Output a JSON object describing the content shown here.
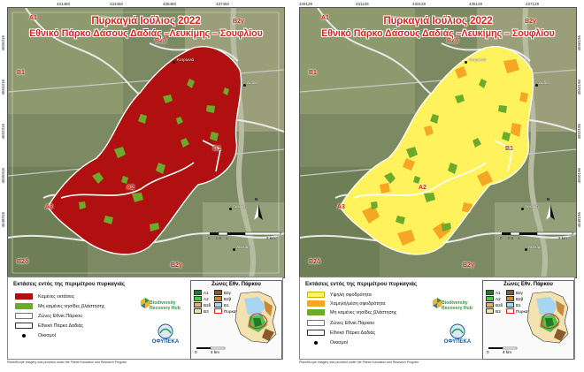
{
  "title_line1": "Πυρκαγιά Ιούλιος 2022",
  "title_line2": "Εθνικό Πάρκο Δάσους Δαδιάς –Λευκίμης – Σουφλίου",
  "x_ticks_top": [
    "431450",
    "433450",
    "435450",
    "437450"
  ],
  "x_ticks_bottom": [
    "431450",
    "433450",
    "435450",
    "437450"
  ],
  "x_ticks_top_right": [
    "429129",
    "431129",
    "433129",
    "435129",
    "437129"
  ],
  "x_ticks_bottom_right": [
    "429129",
    "431129",
    "433129",
    "435129",
    "437129"
  ],
  "y_ticks": [
    "4556316",
    "4554316",
    "4552316",
    "4550316",
    "4548316",
    "4546316",
    "4544316",
    "4542316"
  ],
  "y_ticks_right": [
    "4556196",
    "4554196",
    "4552196",
    "4550196",
    "4548196",
    "4546196",
    "4544196"
  ],
  "zone_labels": {
    "a1": "A1",
    "a2": "A2",
    "a3": "A3",
    "b1": "B1",
    "b1b": "B1",
    "b2g": "B2γ",
    "b2d": "B2δ",
    "b2b": "B2β",
    "b2y": "B2γ"
  },
  "villages": {
    "dadia": "Δαδιά",
    "kotronia": "Κοτρωνιά",
    "provatonas": "Προβατώνας",
    "likofos": "Λυκόφη",
    "lefkimi": "Λευκίμη"
  },
  "scale": {
    "zero": "0",
    "half": "0,5",
    "one": "1",
    "two": "2 km"
  },
  "north_label": "N",
  "legend_title": "Εκτάσεις εντός της περιμέτρου πυρκαγιάς",
  "legend_left": [
    {
      "label": "Καμένες εκτάσεις",
      "color": "#b01010",
      "border": "#b01010"
    },
    {
      "label": "Μη καμένες νησίδες βλάστησης",
      "color": "#6aab2e",
      "border": "#6aab2e"
    },
    {
      "label": "Ζώνες Εθνικ.Πάρκου",
      "color": "#ffffff",
      "border": "#777777"
    },
    {
      "label": "Εθνικό Πάρκο Δαδιάς",
      "color": "#ffffff",
      "border": "#333333"
    },
    {
      "label": "Οικισμοί",
      "color": "dot",
      "border": "#000000"
    }
  ],
  "legend_right": [
    {
      "label": "Υψηλή σφοδρότητα",
      "color": "#fff25c",
      "border": "#c9b800"
    },
    {
      "label": "Χαμηλή/μέση σφοδρότητα",
      "color": "#f5a623",
      "border": "#f5a623"
    },
    {
      "label": "Μη καμένες νησίδες βλάστησης",
      "color": "#6aab2e",
      "border": "#6aab2e"
    },
    {
      "label": "Ζώνες Εθνικ.Πάρκου",
      "color": "#ffffff",
      "border": "#777777"
    },
    {
      "label": "Εθνικό Πάρκο Δαδιάς",
      "color": "#ffffff",
      "border": "#333333"
    },
    {
      "label": "Οικισμοί",
      "color": "dot",
      "border": "#000000"
    }
  ],
  "minimap_title": "Ζώνες Εθν. Πάρκου",
  "minimap_rows": [
    {
      "label": "A1",
      "color": "#1f7a2c"
    },
    {
      "label": "B2γ",
      "color": "#8b5a2b"
    },
    {
      "label": "A2",
      "color": "#58c04a"
    },
    {
      "label": "B2β",
      "color": "#c88a3a"
    },
    {
      "label": "B2δ",
      "color": "#d9b36c"
    },
    {
      "label": "B1",
      "color": "#a8d6f0"
    },
    {
      "label": "B3",
      "color": "#f3e2b0"
    },
    {
      "label": "Πυρκαγιά",
      "color": "#ffffff"
    }
  ],
  "minimap_scale": {
    "zero": "0",
    "four": "4 km"
  },
  "logo_bio": {
    "line1": "Biodiversity",
    "line2": "Recovery Hub"
  },
  "logo_ofy": "ΟΦΥΠΕΚΑ",
  "credit": "PlanetScope imagery was provided under the Planet Education and Research Program",
  "colors": {
    "burned": "#b01010",
    "unburned": "#6aab2e",
    "high": "#fff25c",
    "low": "#f5a623",
    "zone": "#e8e8e8",
    "title": "#e2231a"
  }
}
